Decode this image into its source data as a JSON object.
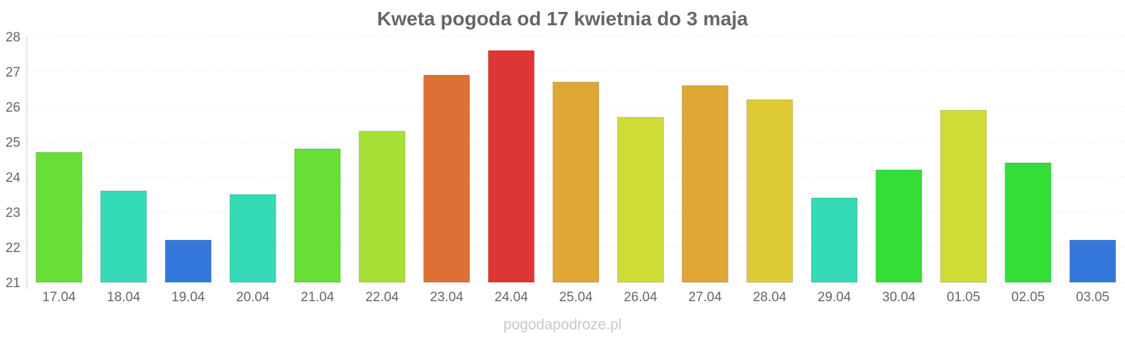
{
  "title": "Kweta pogoda od 17 kwietnia do 3 maja",
  "watermark": "pogodapodroze.pl",
  "chart_data": {
    "type": "bar",
    "title": "Kweta pogoda od 17 kwietnia do 3 maja",
    "xlabel": "",
    "ylabel": "",
    "ylim": [
      21,
      28
    ],
    "yticks": [
      21,
      22,
      23,
      24,
      25,
      26,
      27,
      28
    ],
    "grid": true,
    "legend": "none",
    "categories": [
      "17.04",
      "18.04",
      "19.04",
      "20.04",
      "21.04",
      "22.04",
      "23.04",
      "24.04",
      "25.04",
      "26.04",
      "27.04",
      "28.04",
      "29.04",
      "30.04",
      "01.05",
      "02.05",
      "03.05"
    ],
    "values": [
      24.7,
      23.6,
      22.2,
      23.5,
      24.8,
      25.3,
      26.9,
      27.6,
      26.7,
      25.7,
      26.6,
      26.2,
      23.4,
      24.2,
      25.9,
      24.4,
      22.2
    ],
    "colors": [
      "#68df35",
      "#35dbb6",
      "#3478dc",
      "#35dbb6",
      "#68df35",
      "#a6df35",
      "#df7035",
      "#de3535",
      "#dfa835",
      "#cfdc35",
      "#dfa835",
      "#dccb35",
      "#35dbb6",
      "#34de37",
      "#cfdc35",
      "#34de37",
      "#3478dc"
    ]
  }
}
